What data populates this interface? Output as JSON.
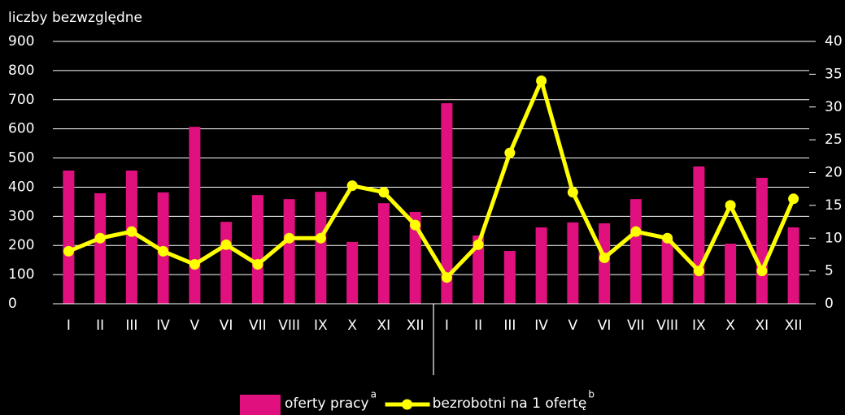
{
  "chart_data": {
    "type": "bar-line",
    "y_label": "liczby bezwzględne",
    "categories": [
      "I",
      "II",
      "III",
      "IV",
      "V",
      "VI",
      "VII",
      "VIII",
      "IX",
      "X",
      "XI",
      "XII",
      "I",
      "II",
      "III",
      "IV",
      "V",
      "VI",
      "VII",
      "VIII",
      "IX",
      "X",
      "XI",
      "XII"
    ],
    "series": [
      {
        "name": "oferty pracy",
        "note": "a",
        "type": "bar",
        "color": "#e0117f",
        "values": [
          457,
          379,
          457,
          382,
          607,
          281,
          373,
          359,
          384,
          212,
          345,
          315,
          688,
          234,
          181,
          262,
          279,
          276,
          359,
          220,
          471,
          206,
          432,
          262
        ]
      },
      {
        "name": "bezrobotni na 1 ofertę",
        "note": "b",
        "type": "line",
        "axis": "y2",
        "color": "#ffff00",
        "values": [
          8,
          10,
          11,
          8,
          6,
          9,
          6,
          10,
          10,
          18,
          17,
          12,
          4,
          9,
          23,
          34,
          17,
          7,
          11,
          10,
          5,
          15,
          5,
          16
        ]
      }
    ],
    "ylim": [
      0,
      900
    ],
    "yticks": [
      0,
      100,
      200,
      300,
      400,
      500,
      600,
      700,
      800,
      900
    ],
    "y2lim": [
      0,
      40
    ],
    "y2ticks": [
      0,
      5,
      10,
      15,
      20,
      25,
      30,
      35,
      40
    ],
    "grid": true,
    "legend": "bottom"
  }
}
